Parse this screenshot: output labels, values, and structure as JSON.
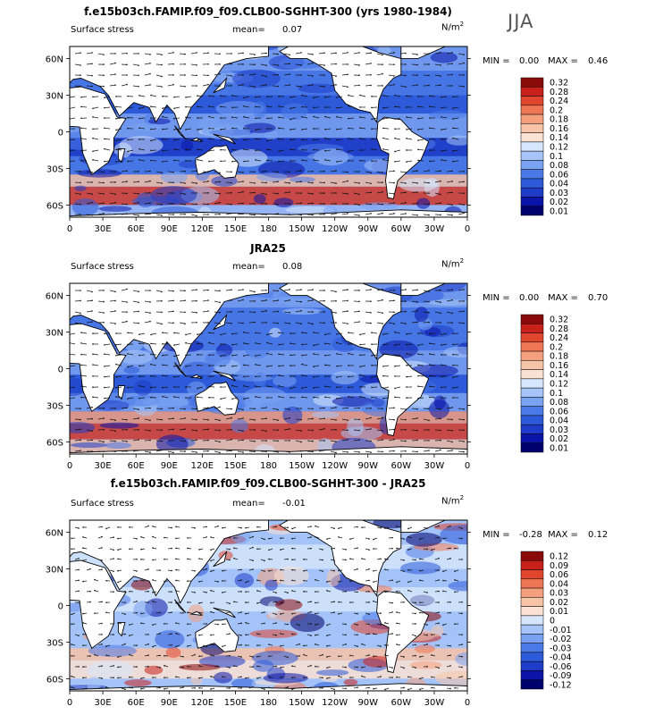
{
  "season_label": "JJA",
  "panels": [
    {
      "title": "f.e15b03ch.FAMIP.f09_f09.CLB00-SGHHT-300 (yrs 1980-1984)",
      "variable": "Surface stress",
      "mean_label": "mean=",
      "mean": "0.07",
      "units": "N/m",
      "units_exp": "2",
      "min_label": "MIN =",
      "min": "0.00",
      "max_label": "MAX =",
      "max": "0.46",
      "colorbar": [
        "0.32",
        "0.28",
        "0.24",
        "0.2",
        "0.18",
        "0.16",
        "0.14",
        "0.12",
        "0.1",
        "0.08",
        "0.06",
        "0.04",
        "0.03",
        "0.02",
        "0.01"
      ]
    },
    {
      "title": "JRA25",
      "variable": "Surface stress",
      "mean_label": "mean=",
      "mean": "0.08",
      "units": "N/m",
      "units_exp": "2",
      "min_label": "MIN =",
      "min": "0.00",
      "max_label": "MAX =",
      "max": "0.70",
      "colorbar": [
        "0.32",
        "0.28",
        "0.24",
        "0.2",
        "0.18",
        "0.16",
        "0.14",
        "0.12",
        "0.1",
        "0.08",
        "0.06",
        "0.04",
        "0.03",
        "0.02",
        "0.01"
      ]
    },
    {
      "title": "f.e15b03ch.FAMIP.f09_f09.CLB00-SGHHT-300 - JRA25",
      "variable": "Surface stress",
      "mean_label": "mean=",
      "mean": "-0.01",
      "units": "N/m",
      "units_exp": "2",
      "min_label": "MIN =",
      "min": "-0.28",
      "max_label": "MAX =",
      "max": "0.12",
      "colorbar": [
        "0.12",
        "0.09",
        "0.06",
        "0.04",
        "0.03",
        "0.02",
        "0.01",
        "0",
        "-0.01",
        "-0.02",
        "-0.03",
        "-0.04",
        "-0.06",
        "-0.09",
        "-0.12"
      ]
    }
  ],
  "lon_ticks": [
    "0",
    "30E",
    "60E",
    "90E",
    "120E",
    "150E",
    "180",
    "150W",
    "120W",
    "90W",
    "60W",
    "30W",
    "0"
  ],
  "lat_ticks": [
    "60N",
    "30N",
    "0",
    "30S",
    "60S"
  ],
  "colors": {
    "seq": [
      "#00006e",
      "#0a14a8",
      "#1e3cc8",
      "#2c5ad8",
      "#4a7ae8",
      "#7aa2f2",
      "#a6c4f8",
      "#d6e6fc",
      "#fbe2d2",
      "#f8c4a8",
      "#f4a07e",
      "#ee7654",
      "#e0462e",
      "#c8201a",
      "#8a0a0a"
    ],
    "land": "#ffffff",
    "ocean_base": "#3058d8"
  }
}
